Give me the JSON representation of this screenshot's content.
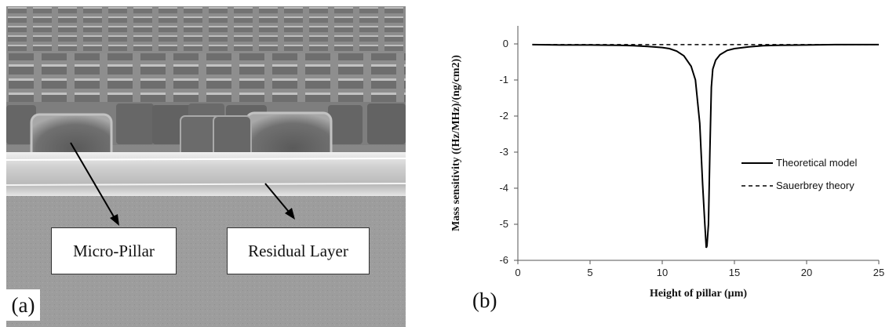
{
  "panel_a": {
    "label": "(a)",
    "callouts": {
      "micro_pillar": "Micro-Pillar",
      "residual_layer": "Residual Layer"
    },
    "colors": {
      "background": "#8c8c8c",
      "pillar": "#6e6e6e",
      "layer": "#d9d9d9",
      "substrate": "#9a9a9a"
    }
  },
  "panel_b": {
    "label": "(b)"
  },
  "chart_data": {
    "type": "line",
    "xlabel": "Height of pillar (µm)",
    "ylabel": "Mass sensitivity ((Hz/MHz)/(ng/cm2))",
    "xlim": [
      0,
      25
    ],
    "ylim": [
      -6,
      0.5
    ],
    "x_ticks": [
      0,
      5,
      10,
      15,
      20,
      25
    ],
    "y_ticks": [
      0,
      -1,
      -2,
      -3,
      -4,
      -5,
      -6
    ],
    "grid": false,
    "legend_position": "right",
    "series": [
      {
        "name": "Theoretical model",
        "style": "solid",
        "color": "#000000",
        "x": [
          1,
          3,
          5,
          7,
          8,
          9,
          10,
          10.5,
          11,
          11.5,
          12,
          12.3,
          12.6,
          12.8,
          12.95,
          13.05,
          13.1,
          13.2,
          13.3,
          13.4,
          13.5,
          13.7,
          14,
          14.5,
          15,
          16,
          17,
          18,
          20,
          22,
          25
        ],
        "y": [
          -0.02,
          -0.03,
          -0.03,
          -0.04,
          -0.05,
          -0.07,
          -0.1,
          -0.13,
          -0.2,
          -0.33,
          -0.62,
          -1.0,
          -2.2,
          -3.9,
          -5.0,
          -5.65,
          -5.6,
          -5.0,
          -3.0,
          -1.2,
          -0.7,
          -0.45,
          -0.3,
          -0.18,
          -0.13,
          -0.08,
          -0.05,
          -0.04,
          -0.03,
          -0.02,
          -0.02
        ]
      },
      {
        "name": "Sauerbrey theory",
        "style": "dashed",
        "color": "#000000",
        "x": [
          1,
          25
        ],
        "y": [
          -0.02,
          -0.02
        ]
      }
    ]
  }
}
